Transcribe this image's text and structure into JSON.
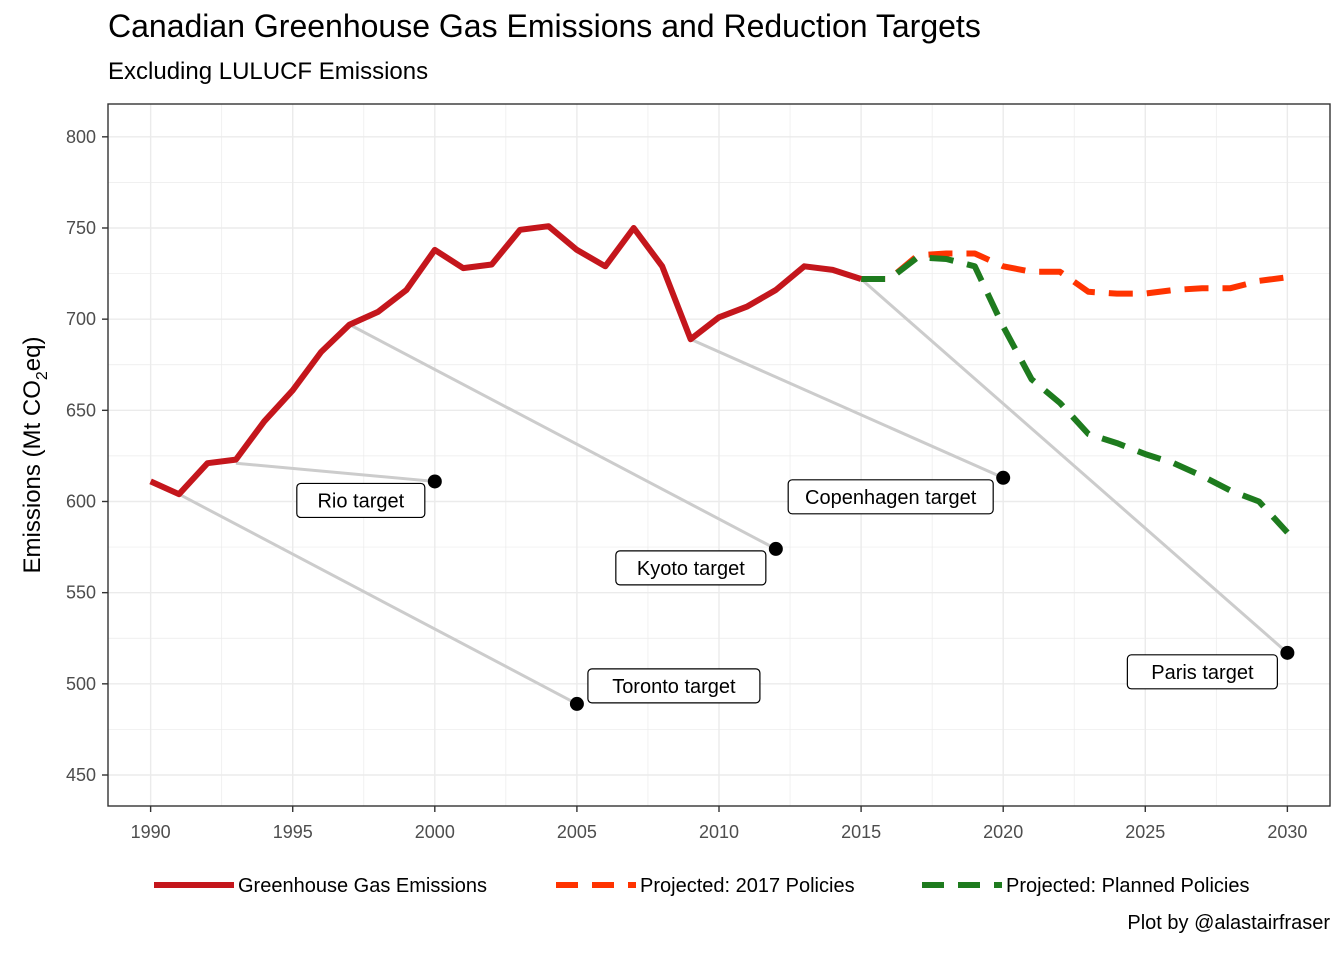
{
  "title": "Canadian Greenhouse Gas Emissions and Reduction Targets",
  "subtitle": "Excluding LULUCF Emissions",
  "caption": "Plot by @alastairfraser",
  "colors": {
    "historical": "#c4161c",
    "policies_2017": "#ff3300",
    "planned": "#1e7b1e",
    "connector": "#cccccc",
    "gridline": "#ebebeb"
  },
  "chart_data": {
    "type": "line",
    "title": "Canadian Greenhouse Gas Emissions and Reduction Targets",
    "subtitle": "Excluding LULUCF Emissions",
    "xlabel": "",
    "ylabel": "Emissions (Mt CO2eq)",
    "ylabel_parts": {
      "main": "Emissions (Mt CO",
      "sub": "2",
      "tail": "eq)"
    },
    "xlim": [
      1988.5,
      2031.5
    ],
    "ylim": [
      433,
      818
    ],
    "x_ticks": [
      1990,
      1995,
      2000,
      2005,
      2010,
      2015,
      2020,
      2025,
      2030
    ],
    "y_ticks": [
      450,
      500,
      550,
      600,
      650,
      700,
      750,
      800
    ],
    "grid": true,
    "legend_position": "bottom",
    "series": [
      {
        "name": "Greenhouse Gas Emissions",
        "style": "solid",
        "x": [
          1990,
          1991,
          1992,
          1993,
          1994,
          1995,
          1996,
          1997,
          1998,
          1999,
          2000,
          2001,
          2002,
          2003,
          2004,
          2005,
          2006,
          2007,
          2008,
          2009,
          2010,
          2011,
          2012,
          2013,
          2014,
          2015
        ],
        "y": [
          611,
          604,
          621,
          623,
          644,
          661,
          682,
          697,
          704,
          716,
          738,
          728,
          730,
          749,
          751,
          738,
          729,
          750,
          729,
          689,
          701,
          707,
          716,
          729,
          727,
          722
        ]
      },
      {
        "name": "Projected: 2017 Policies",
        "style": "dashed",
        "x": [
          2015,
          2016,
          2017,
          2018,
          2019,
          2020,
          2021,
          2022,
          2023,
          2024,
          2025,
          2026,
          2027,
          2028,
          2029,
          2030
        ],
        "y": [
          722,
          722,
          735,
          736,
          736,
          729,
          726,
          726,
          715,
          714,
          714,
          716,
          717,
          717,
          721,
          723
        ]
      },
      {
        "name": "Projected: Planned Policies",
        "style": "dashed",
        "x": [
          2015,
          2016,
          2017,
          2018,
          2019,
          2020,
          2021,
          2022,
          2023,
          2024,
          2025,
          2026,
          2027,
          2028,
          2029,
          2030
        ],
        "y": [
          722,
          722,
          734,
          733,
          729,
          696,
          667,
          654,
          637,
          632,
          626,
          621,
          614,
          606,
          600,
          583
        ]
      }
    ],
    "targets": [
      {
        "label": "Toronto target",
        "x": 2005,
        "y": 489,
        "from_x": 1991,
        "from_y": 604,
        "label_side": "right"
      },
      {
        "label": "Rio target",
        "x": 2000,
        "y": 611,
        "from_x": 1993,
        "from_y": 621,
        "label_side": "left"
      },
      {
        "label": "Kyoto target",
        "x": 2012,
        "y": 574,
        "from_x": 1997,
        "from_y": 697,
        "label_side": "left"
      },
      {
        "label": "Copenhagen target",
        "x": 2020,
        "y": 613,
        "from_x": 2009,
        "from_y": 689,
        "label_side": "left"
      },
      {
        "label": "Paris target",
        "x": 2030,
        "y": 517,
        "from_x": 2015,
        "from_y": 722,
        "label_side": "left"
      }
    ]
  }
}
